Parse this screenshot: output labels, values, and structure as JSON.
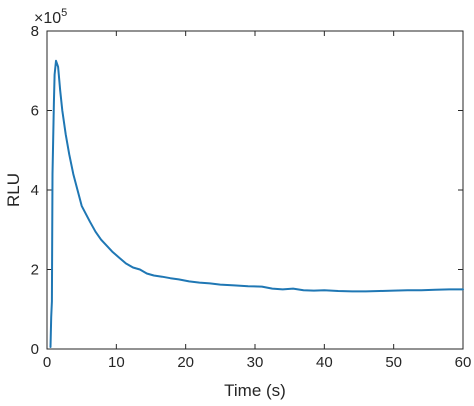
{
  "chart_data": {
    "type": "line",
    "title": "",
    "xlabel": "Time (s)",
    "ylabel": "RLU",
    "xlim": [
      0,
      60
    ],
    "ylim": [
      0,
      8
    ],
    "y_exponent_label": "×10",
    "y_exponent_power": "5",
    "xticks": [
      "0",
      "10",
      "20",
      "30",
      "40",
      "50",
      "60"
    ],
    "yticks": [
      "0",
      "2",
      "4",
      "6",
      "8"
    ],
    "grid": false,
    "legend": false,
    "line_color": "#1f77b4",
    "series": [
      {
        "x": [
          0.5,
          0.6,
          0.7,
          0.8,
          0.9,
          1.0,
          1.1,
          1.3,
          1.6,
          1.9,
          2.2,
          2.7,
          3.2,
          3.8,
          4.4,
          5.0,
          5.6,
          6.2,
          7.0,
          7.8,
          8.6,
          9.4,
          10.4,
          11.4,
          12.4,
          13.4,
          14.4,
          15.4,
          16.6,
          17.8,
          19.0,
          20.5,
          22.0,
          23.5,
          25.0,
          27.0,
          29.0,
          31.0,
          32.5,
          34.0,
          35.5,
          37.0,
          38.5,
          40.0,
          42.0,
          44.0,
          46.0,
          48.0,
          50.0,
          52.0,
          54.0,
          56.0,
          58.0,
          60.0
        ],
        "values": [
          0.05,
          0.8,
          1.2,
          4.4,
          5.3,
          6.2,
          6.9,
          7.25,
          7.1,
          6.5,
          6.0,
          5.4,
          4.9,
          4.4,
          4.0,
          3.6,
          3.4,
          3.2,
          2.95,
          2.75,
          2.6,
          2.45,
          2.3,
          2.15,
          2.05,
          2.0,
          1.9,
          1.85,
          1.82,
          1.78,
          1.75,
          1.7,
          1.67,
          1.65,
          1.62,
          1.6,
          1.58,
          1.57,
          1.52,
          1.5,
          1.52,
          1.48,
          1.47,
          1.48,
          1.46,
          1.45,
          1.45,
          1.46,
          1.47,
          1.48,
          1.48,
          1.49,
          1.5,
          1.5
        ]
      }
    ]
  }
}
